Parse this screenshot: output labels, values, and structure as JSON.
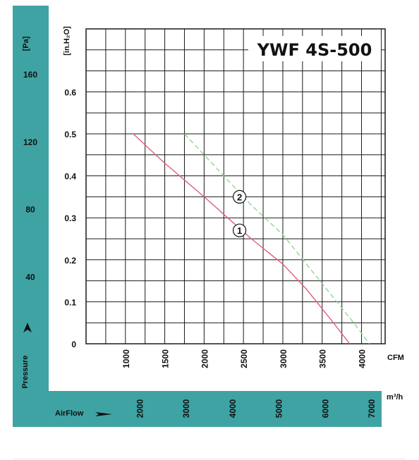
{
  "chart_data": {
    "type": "line",
    "title": "YWF 4S-500",
    "y_axis_left_unit": "[Pa]",
    "y_axis_right_unit": "[in.H₂O]",
    "y_axis_label": "Pressure",
    "x_axis_label": "AirFlow",
    "x_unit_cfm": "CFM",
    "x_unit_m3h": "m³/h",
    "pa_ticks": [
      "160",
      "120",
      "80",
      "40"
    ],
    "inh2o_ticks": [
      "0.6",
      "0.5",
      "0.4",
      "0.3",
      "0.2",
      "0.1",
      "0"
    ],
    "cfm_ticks": [
      "1000",
      "1500",
      "2000",
      "2500",
      "3000",
      "3500",
      "4000"
    ],
    "m3h_ticks": [
      "2000",
      "3000",
      "4000",
      "5000",
      "6000",
      "7000"
    ],
    "xlim_cfm": [
      500,
      4300
    ],
    "ylim_inh2o": [
      0,
      0.75
    ],
    "grid": true,
    "series": [
      {
        "name": "1",
        "color": "#e0607a",
        "dash": "solid",
        "x": [
          1100,
          1500,
          2000,
          2300,
          2600,
          3000,
          3300,
          3600,
          3850
        ],
        "y": [
          0.5,
          0.43,
          0.35,
          0.3,
          0.25,
          0.19,
          0.13,
          0.06,
          0
        ]
      },
      {
        "name": "2",
        "color": "#8fd890",
        "dash": "dashed",
        "x": [
          1750,
          2000,
          2300,
          2600,
          3000,
          3300,
          3600,
          3900,
          4100
        ],
        "y": [
          0.5,
          0.45,
          0.39,
          0.33,
          0.26,
          0.19,
          0.12,
          0.05,
          0
        ]
      }
    ],
    "markers": [
      {
        "label": "①",
        "x": 2450,
        "y": 0.27
      },
      {
        "label": "②",
        "x": 2450,
        "y": 0.35
      }
    ]
  }
}
